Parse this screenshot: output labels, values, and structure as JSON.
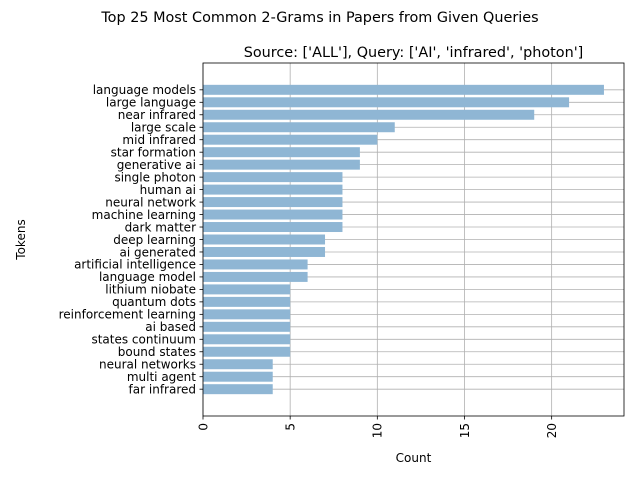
{
  "chart_data": {
    "type": "bar",
    "orientation": "horizontal",
    "suptitle": "Top 25 Most Common 2-Grams in Papers from Given Queries",
    "title": "Source: ['ALL'], Query: ['AI', 'infrared', 'photon']",
    "xlabel": "Count",
    "ylabel": "Tokens",
    "xlim": [
      0,
      24.15
    ],
    "xticks": [
      0,
      5,
      10,
      15,
      20
    ],
    "xtick_labels": [
      "0",
      "5",
      "10",
      "15",
      "20"
    ],
    "xtick_rotation": 90,
    "grid": true,
    "bar_color": "#8fb6d4",
    "categories": [
      "language models",
      "large language",
      "near infrared",
      "large scale",
      "mid infrared",
      "star formation",
      "generative ai",
      "single photon",
      "human ai",
      "neural network",
      "machine learning",
      "dark matter",
      "deep learning",
      "ai generated",
      "artificial intelligence",
      "language model",
      "lithium niobate",
      "quantum dots",
      "reinforcement learning",
      "ai based",
      "states continuum",
      "bound states",
      "neural networks",
      "multi agent",
      "far infrared"
    ],
    "values": [
      23,
      21,
      19,
      11,
      10,
      9,
      9,
      8,
      8,
      8,
      8,
      8,
      7,
      7,
      6,
      6,
      5,
      5,
      5,
      5,
      5,
      5,
      4,
      4,
      4
    ]
  }
}
